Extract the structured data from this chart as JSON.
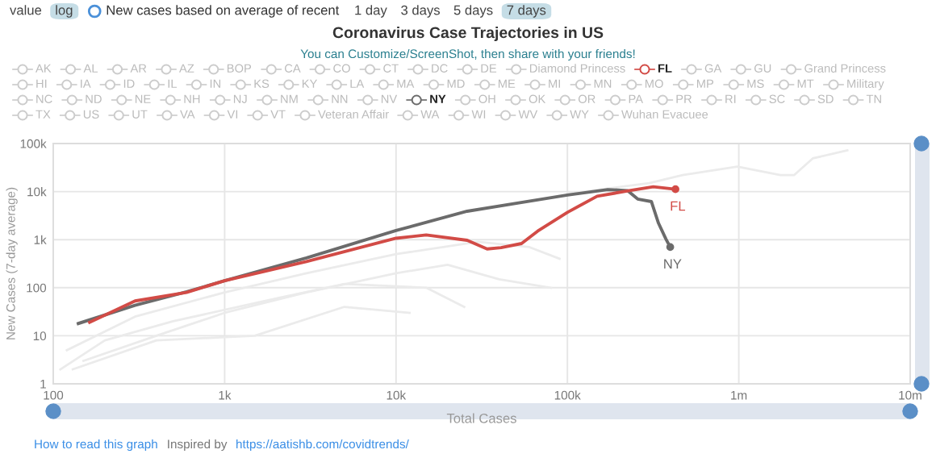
{
  "chart_data": {
    "type": "line",
    "title": "Coronavirus Case Trajectories in US",
    "subtitle": "You can Customize/ScreenShot, then share with your friends!",
    "xlabel": "Total Cases",
    "ylabel": "New Cases (7-day average)",
    "log": "xy",
    "grid": true,
    "xlim": [
      100,
      10000000
    ],
    "ylim": [
      1,
      100000
    ],
    "xticks": [
      100,
      {
        "value": 1000,
        "label": "1k"
      },
      {
        "value": 10000,
        "label": "10k"
      },
      {
        "value": 100000,
        "label": "100k"
      },
      {
        "value": 1000000,
        "label": "1m"
      },
      {
        "value": 10000000,
        "label": "10m"
      }
    ],
    "yticks": [
      1,
      10,
      100,
      {
        "value": 1000,
        "label": "1k"
      },
      {
        "value": 10000,
        "label": "10k"
      },
      {
        "value": 100000,
        "label": "100k"
      }
    ],
    "series": [
      {
        "color": "#ebebeb",
        "x": [
          100000,
          300000,
          470000,
          980000,
          1750000,
          2100000,
          2700000,
          4300000
        ],
        "values": [
          9000,
          15000,
          22000,
          33000,
          22000,
          22000,
          49000,
          72000
        ]
      },
      {
        "color": "#ebebeb",
        "x": [
          120,
          300,
          1000,
          3000,
          10000,
          30000,
          60000,
          90000
        ],
        "values": [
          5,
          25,
          80,
          200,
          500,
          900,
          700,
          400
        ]
      },
      {
        "color": "#ebebeb",
        "x": [
          150,
          400,
          1000,
          3000,
          10000,
          20000,
          40000,
          80000
        ],
        "values": [
          3,
          10,
          30,
          80,
          200,
          300,
          150,
          100
        ]
      },
      {
        "color": "#ebebeb",
        "x": [
          110,
          200,
          500,
          2000,
          5000,
          15000,
          25000
        ],
        "values": [
          2,
          8,
          20,
          60,
          120,
          100,
          40
        ]
      },
      {
        "color": "#ebebeb",
        "x": [
          130,
          400,
          1500,
          5000,
          12000
        ],
        "values": [
          2,
          8,
          10,
          40,
          30
        ]
      },
      {
        "name": "NY",
        "color": "#6b6b6b",
        "x": [
          140,
          300,
          600,
          1000,
          3000,
          10000,
          26000,
          100000,
          172000,
          224000,
          257000,
          309000,
          340000,
          376000,
          398000
        ],
        "values": [
          18,
          43,
          82,
          140,
          415,
          1550,
          3900,
          8500,
          11000,
          10500,
          7000,
          6200,
          2200,
          1020,
          700
        ]
      },
      {
        "name": "FL",
        "color": "#d24b46",
        "x": [
          163,
          300,
          600,
          1000,
          3000,
          10000,
          15000,
          26000,
          34000,
          41000,
          54000,
          67000,
          100000,
          149000,
          230000,
          317000,
          427000
        ],
        "values": [
          19,
          53,
          80,
          140,
          350,
          1070,
          1250,
          970,
          640,
          680,
          830,
          1500,
          3700,
          8000,
          10500,
          12600,
          11200
        ]
      }
    ],
    "annotations": [
      "value",
      "log",
      "New cases based on average of recent",
      "1 day",
      "3 days",
      "5 days",
      "7 days",
      "AK",
      "AL",
      "AR",
      "AZ",
      "BOP",
      "CA",
      "CO",
      "CT",
      "DC",
      "DE",
      "Diamond Princess",
      "FL",
      "GA",
      "GU",
      "Grand Princess",
      "HI",
      "IA",
      "ID",
      "IL",
      "IN",
      "KS",
      "KY",
      "LA",
      "MA",
      "MD",
      "ME",
      "MI",
      "MN",
      "MO",
      "MP",
      "MS",
      "MT",
      "Military",
      "NC",
      "ND",
      "NE",
      "NH",
      "NJ",
      "NM",
      "NN",
      "NV",
      "NY",
      "OH",
      "OK",
      "OR",
      "PA",
      "PR",
      "RI",
      "SC",
      "SD",
      "TN",
      "TX",
      "US",
      "UT",
      "VA",
      "VI",
      "VT",
      "Veteran Affair",
      "WA",
      "WI",
      "WV",
      "WY",
      "Wuhan Evacuee",
      "How to read this graph",
      "Inspired by",
      "https://aatishb.com/covidtrends/"
    ]
  }
}
